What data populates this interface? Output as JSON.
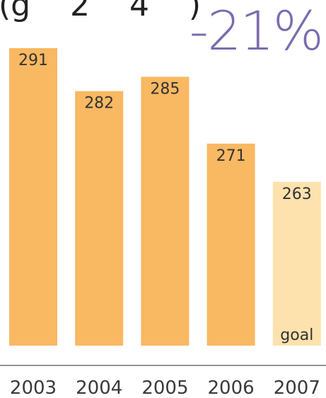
{
  "header": {
    "title_fragment": "(g    2    4    )",
    "headline": "-21%"
  },
  "colors": {
    "bar": "#f9b862",
    "bar_goal": "#fde2ae",
    "headline": "#7a6cae",
    "axis": "#555555"
  },
  "chart_data": {
    "type": "bar",
    "categories": [
      "2003",
      "2004",
      "2005",
      "2006",
      "2007"
    ],
    "values": [
      291,
      282,
      285,
      271,
      263
    ],
    "goal_category": "2007",
    "goal_label": "goal",
    "title": "",
    "xlabel": "",
    "ylabel": "",
    "ylim": [
      0,
      300
    ],
    "grid": false,
    "legend": "none"
  }
}
